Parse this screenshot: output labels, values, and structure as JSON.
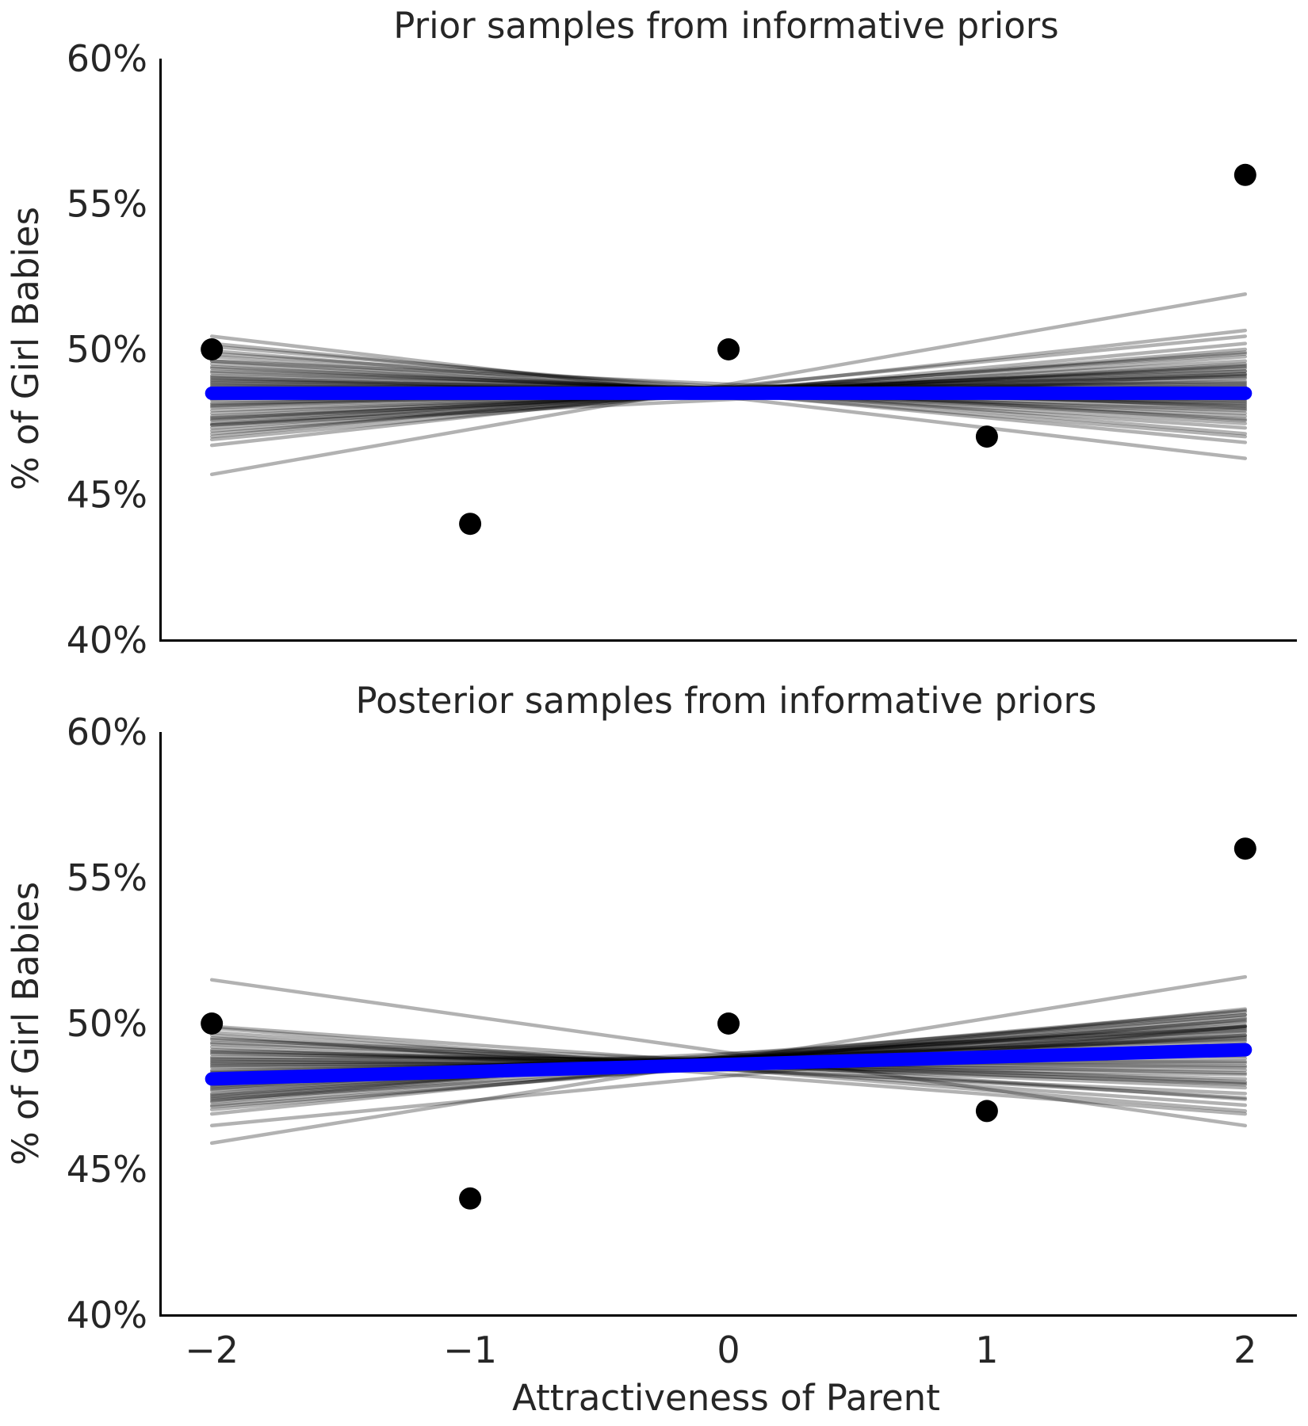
{
  "chart_data": [
    {
      "type": "line",
      "title": "Prior samples from informative priors",
      "xlabel": "",
      "ylabel": "% of Girl Babies",
      "xlim": [
        -2.2,
        2.2
      ],
      "ylim": [
        0.4,
        0.6
      ],
      "x_ticks": [],
      "y_ticks": [
        0.4,
        0.45,
        0.5,
        0.55,
        0.6
      ],
      "y_tick_labels": [
        "40%",
        "45%",
        "50%",
        "55%",
        "60%"
      ],
      "grid": false,
      "observed": {
        "x": [
          -2,
          -1,
          0,
          1,
          2
        ],
        "y": [
          0.5,
          0.44,
          0.5,
          0.47,
          0.56
        ],
        "color": "#000000"
      },
      "mean_line": {
        "x": [
          -2,
          2
        ],
        "y": [
          0.4849,
          0.4849
        ],
        "color": "#0000ff"
      },
      "sample_lines": {
        "x": [
          -2,
          2
        ],
        "color": "#000000",
        "y": [
          [
            0.457,
            0.519
          ],
          [
            0.5045,
            0.4625
          ],
          [
            0.474,
            0.4915
          ],
          [
            0.501,
            0.471
          ],
          [
            0.467,
            0.5065
          ],
          [
            0.4985,
            0.4755
          ],
          [
            0.473,
            0.499
          ],
          [
            0.496,
            0.48
          ],
          [
            0.47,
            0.5045
          ],
          [
            0.4935,
            0.478
          ],
          [
            0.4755,
            0.496
          ],
          [
            0.491,
            0.482
          ],
          [
            0.478,
            0.4935
          ],
          [
            0.489,
            0.4845
          ],
          [
            0.4805,
            0.491
          ],
          [
            0.487,
            0.487
          ],
          [
            0.483,
            0.489
          ],
          [
            0.4855,
            0.4855
          ],
          [
            0.495,
            0.476
          ],
          [
            0.472,
            0.4975
          ],
          [
            0.4905,
            0.479
          ],
          [
            0.4765,
            0.4925
          ],
          [
            0.488,
            0.483
          ],
          [
            0.479,
            0.49
          ],
          [
            0.4845,
            0.486
          ],
          [
            0.502,
            0.468
          ],
          [
            0.469,
            0.502
          ],
          [
            0.4975,
            0.473
          ],
          [
            0.4745,
            0.495
          ],
          [
            0.4925,
            0.4805
          ],
          [
            0.4815,
            0.4875
          ],
          [
            0.486,
            0.488
          ],
          [
            0.4995,
            0.47
          ],
          [
            0.471,
            0.5
          ],
          [
            0.4895,
            0.4815
          ],
          [
            0.477,
            0.494
          ],
          [
            0.494,
            0.477
          ],
          [
            0.4825,
            0.4865
          ],
          [
            0.4865,
            0.484
          ],
          [
            0.48,
            0.4915
          ],
          [
            0.492,
            0.4795
          ],
          [
            0.474,
            0.4985
          ],
          [
            0.4885,
            0.4825
          ],
          [
            0.4835,
            0.4905
          ],
          [
            0.496,
            0.4745
          ],
          [
            0.476,
            0.4945
          ],
          [
            0.49,
            0.481
          ],
          [
            0.481,
            0.4925
          ],
          [
            0.4875,
            0.485
          ],
          [
            0.485,
            0.4885
          ]
        ]
      }
    },
    {
      "type": "line",
      "title": "Posterior samples from informative priors",
      "xlabel": "Attractiveness of Parent",
      "ylabel": "% of Girl Babies",
      "xlim": [
        -2.2,
        2.2
      ],
      "ylim": [
        0.4,
        0.6
      ],
      "x_ticks": [
        -2,
        -1,
        0,
        1,
        2
      ],
      "x_tick_labels": [
        "−2",
        "−1",
        "0",
        "1",
        "2"
      ],
      "y_ticks": [
        0.4,
        0.45,
        0.5,
        0.55,
        0.6
      ],
      "y_tick_labels": [
        "40%",
        "45%",
        "50%",
        "55%",
        "60%"
      ],
      "grid": false,
      "observed": {
        "x": [
          -2,
          -1,
          0,
          1,
          2
        ],
        "y": [
          0.5,
          0.44,
          0.5,
          0.47,
          0.56
        ],
        "color": "#000000"
      },
      "mean_line": {
        "x": [
          -2,
          2
        ],
        "y": [
          0.481,
          0.491
        ],
        "color": "#0000ff"
      },
      "sample_lines": {
        "x": [
          -2,
          2
        ],
        "color": "#000000",
        "y": [
          [
            0.515,
            0.465
          ],
          [
            0.459,
            0.516
          ],
          [
            0.465,
            0.499
          ],
          [
            0.469,
            0.505
          ],
          [
            0.496,
            0.469
          ],
          [
            0.472,
            0.503
          ],
          [
            0.499,
            0.474
          ],
          [
            0.475,
            0.501
          ],
          [
            0.493,
            0.478
          ],
          [
            0.478,
            0.499
          ],
          [
            0.49,
            0.481
          ],
          [
            0.48,
            0.496
          ],
          [
            0.487,
            0.484
          ],
          [
            0.4825,
            0.494
          ],
          [
            0.485,
            0.487
          ],
          [
            0.481,
            0.4985
          ],
          [
            0.476,
            0.503
          ],
          [
            0.473,
            0.5045
          ],
          [
            0.492,
            0.476
          ],
          [
            0.4945,
            0.48
          ],
          [
            0.4705,
            0.5015
          ],
          [
            0.479,
            0.4975
          ],
          [
            0.488,
            0.4825
          ],
          [
            0.4835,
            0.492
          ],
          [
            0.4855,
            0.4895
          ],
          [
            0.497,
            0.472
          ],
          [
            0.474,
            0.496
          ],
          [
            0.4895,
            0.485
          ],
          [
            0.4815,
            0.495
          ],
          [
            0.4865,
            0.488
          ],
          [
            0.4775,
            0.4995
          ],
          [
            0.491,
            0.4795
          ],
          [
            0.4745,
            0.502
          ],
          [
            0.484,
            0.4905
          ],
          [
            0.48,
            0.493
          ],
          [
            0.495,
            0.4745
          ],
          [
            0.4715,
            0.499
          ],
          [
            0.4885,
            0.4865
          ],
          [
            0.477,
            0.497
          ],
          [
            0.483,
            0.4915
          ],
          [
            0.4985,
            0.47
          ],
          [
            0.4735,
            0.504
          ],
          [
            0.486,
            0.4855
          ],
          [
            0.4795,
            0.4955
          ],
          [
            0.4905,
            0.483
          ],
          [
            0.4755,
            0.5005
          ],
          [
            0.482,
            0.4945
          ],
          [
            0.4875,
            0.489
          ],
          [
            0.4935,
            0.479
          ],
          [
            0.4785,
            0.498
          ]
        ]
      }
    }
  ]
}
